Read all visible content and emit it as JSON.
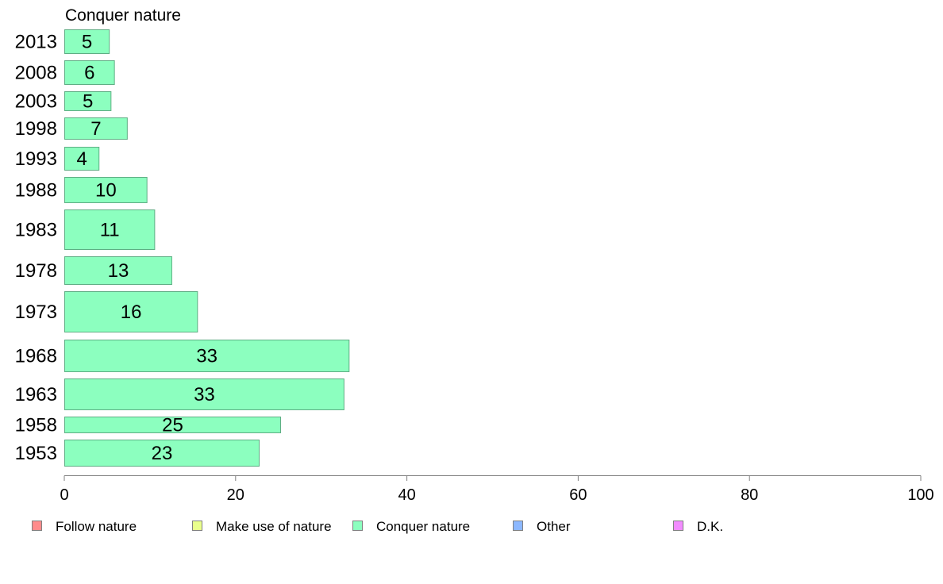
{
  "chart_data": {
    "type": "bar",
    "orientation": "horizontal",
    "title": "Conquer nature",
    "categories": [
      "2013",
      "2008",
      "2003",
      "1998",
      "1993",
      "1988",
      "1983",
      "1978",
      "1973",
      "1968",
      "1963",
      "1958",
      "1953"
    ],
    "series": [
      {
        "name": "Conquer nature",
        "color": "#8cffbf",
        "values": [
          5.3,
          5.9,
          5.5,
          7.4,
          4.1,
          9.7,
          10.6,
          12.6,
          15.6,
          33.3,
          32.7,
          25.3,
          22.8
        ],
        "labels": [
          "5",
          "6",
          "5",
          "7",
          "4",
          "10",
          "11",
          "13",
          "16",
          "33",
          "33",
          "25",
          "23"
        ]
      }
    ],
    "xlim": [
      0,
      100
    ],
    "xticks": [
      "0",
      "20",
      "40",
      "60",
      "80",
      "100"
    ],
    "grid": false,
    "legend_position": "bottom",
    "legend": [
      {
        "name": "Follow nature",
        "color": "#ff8c8c"
      },
      {
        "name": "Make use of nature",
        "color": "#eaff8c"
      },
      {
        "name": "Conquer nature",
        "color": "#8cffbf"
      },
      {
        "name": "Other",
        "color": "#8cb8ff"
      },
      {
        "name": "D.K.",
        "color": "#f28cff"
      }
    ]
  }
}
